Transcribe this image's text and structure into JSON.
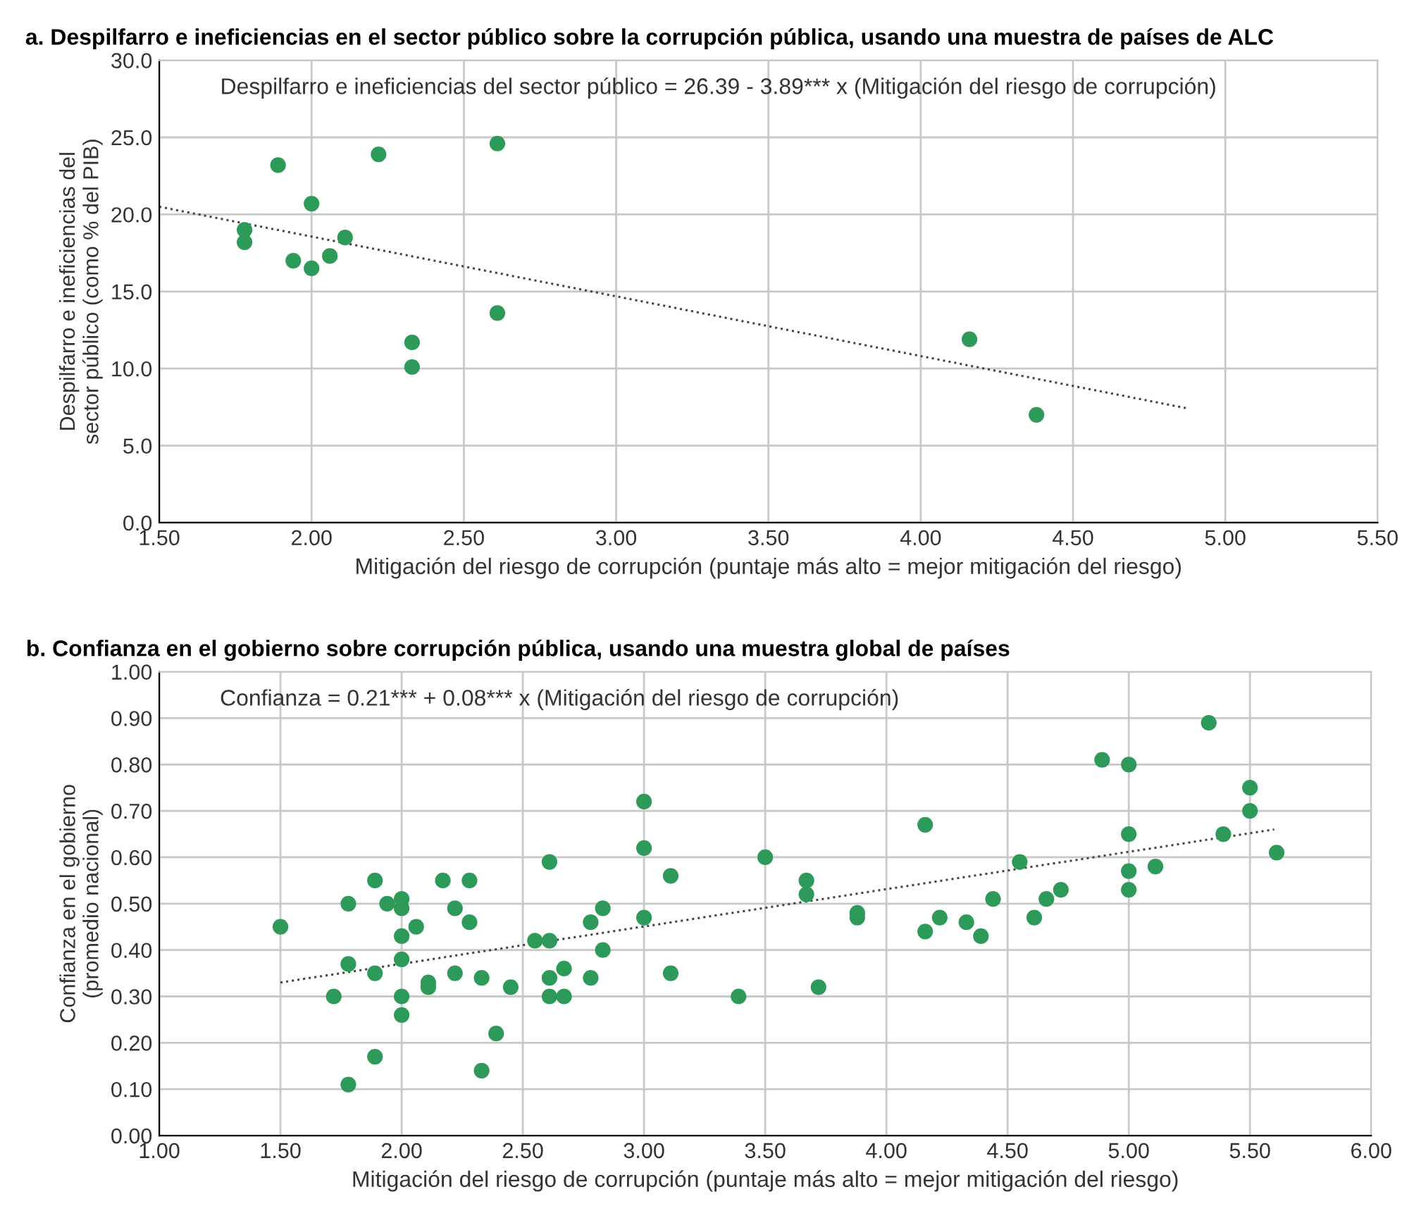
{
  "chart_data": [
    {
      "type": "scatter",
      "title": "a. Despilfarro e ineficiencias en el sector público sobre la corrupción pública, usando una muestra de países de ALC",
      "xlabel": "Mitigación del riesgo de corrupción (puntaje más alto = mejor mitigación del riesgo)",
      "ylabel": "Despilfarro e ineficiencias del\nsector público (como % del PIB)",
      "annotations": [
        "Despilfarro e ineficiencias del sector público = 26.39 - 3.89*** x (Mitigación del riesgo de corrupción)"
      ],
      "xlim": [
        1.5,
        5.5
      ],
      "xticks": [
        {
          "value": 1.5,
          "label": "1.50"
        },
        {
          "value": 2,
          "label": "2.00"
        },
        {
          "value": 2.5,
          "label": "2.50"
        },
        {
          "value": 3,
          "label": "3.00"
        },
        {
          "value": 3.5,
          "label": "3.50"
        },
        {
          "value": 4,
          "label": "4.00"
        },
        {
          "value": 4.5,
          "label": "4.50"
        },
        {
          "value": 5,
          "label": "5.00"
        },
        {
          "value": 5.5,
          "label": "5.50"
        }
      ],
      "ylim": [
        0,
        30
      ],
      "yticks": [
        {
          "value": 0,
          "label": "0.0"
        },
        {
          "value": 5,
          "label": "5.0"
        },
        {
          "value": 10,
          "label": "10.0"
        },
        {
          "value": 15,
          "label": "15.0"
        },
        {
          "value": 20,
          "label": "20.0"
        },
        {
          "value": 25,
          "label": "25.0"
        },
        {
          "value": 30,
          "label": "30.0"
        }
      ],
      "grid": true,
      "marker": "circle",
      "series": [
        {
          "color": "#2e9a5a",
          "x": [
            1.89,
            2.22,
            2.61,
            2.0,
            1.78,
            1.78,
            2.11,
            1.94,
            2.06,
            2.0,
            2.61,
            2.33,
            2.33,
            4.16,
            4.38
          ],
          "values": [
            23.2,
            23.9,
            24.6,
            20.7,
            19.0,
            18.2,
            18.5,
            17.0,
            17.3,
            16.5,
            13.6,
            11.7,
            10.1,
            11.9,
            7.0
          ]
        },
        {
          "type": "line",
          "color": "#444444",
          "line_style": "dotted",
          "marker": "none",
          "x": [
            1.5,
            4.88
          ],
          "values": [
            20.5,
            7.4
          ]
        }
      ]
    },
    {
      "type": "scatter",
      "title": "b. Confianza en el gobierno sobre corrupción pública, usando una muestra global de países",
      "xlabel": "Mitigación del riesgo de corrupción (puntaje más alto = mejor mitigación del riesgo)",
      "ylabel": "Confianza en el gobierno\n(promedio nacional)",
      "annotations": [
        "Confianza = 0.21*** + 0.08*** x (Mitigación del riesgo de corrupción)"
      ],
      "xlim": [
        1,
        6
      ],
      "xticks": [
        {
          "value": 1,
          "label": "1.00"
        },
        {
          "value": 1.5,
          "label": "1.50"
        },
        {
          "value": 2,
          "label": "2.00"
        },
        {
          "value": 2.5,
          "label": "2.50"
        },
        {
          "value": 3,
          "label": "3.00"
        },
        {
          "value": 3.5,
          "label": "3.50"
        },
        {
          "value": 4,
          "label": "4.00"
        },
        {
          "value": 4.5,
          "label": "4.50"
        },
        {
          "value": 5,
          "label": "5.00"
        },
        {
          "value": 5.5,
          "label": "5.50"
        },
        {
          "value": 6,
          "label": "6.00"
        }
      ],
      "ylim": [
        0,
        1
      ],
      "yticks": [
        {
          "value": 0,
          "label": "0.00"
        },
        {
          "value": 0.1,
          "label": "0.10"
        },
        {
          "value": 0.2,
          "label": "0.20"
        },
        {
          "value": 0.3,
          "label": "0.30"
        },
        {
          "value": 0.4,
          "label": "0.40"
        },
        {
          "value": 0.5,
          "label": "0.50"
        },
        {
          "value": 0.6,
          "label": "0.60"
        },
        {
          "value": 0.7,
          "label": "0.70"
        },
        {
          "value": 0.8,
          "label": "0.80"
        },
        {
          "value": 0.9,
          "label": "0.90"
        },
        {
          "value": 1,
          "label": "1.00"
        }
      ],
      "grid": true,
      "marker": "circle",
      "series": [
        {
          "color": "#2e9a5a",
          "x": [
            1.5,
            1.78,
            1.89,
            1.94,
            2.0,
            2.0,
            2.0,
            2.06,
            2.0,
            1.78,
            1.89,
            1.72,
            2.0,
            2.0,
            1.89,
            1.78,
            2.17,
            2.28,
            2.22,
            2.28,
            2.11,
            2.11,
            2.22,
            2.33,
            2.45,
            2.39,
            2.33,
            2.61,
            2.55,
            2.61,
            2.61,
            2.61,
            2.67,
            2.67,
            2.78,
            2.83,
            2.83,
            2.78,
            3.0,
            3.0,
            3.0,
            3.11,
            3.11,
            3.39,
            3.5,
            3.67,
            3.67,
            3.72,
            3.88,
            3.88,
            4.16,
            4.16,
            4.22,
            4.33,
            4.39,
            4.44,
            4.55,
            4.61,
            4.66,
            4.72,
            4.89,
            5.0,
            5.0,
            5.0,
            5.0,
            5.11,
            5.33,
            5.39,
            5.5,
            5.5,
            5.61
          ],
          "values": [
            0.45,
            0.5,
            0.55,
            0.5,
            0.51,
            0.49,
            0.43,
            0.45,
            0.38,
            0.37,
            0.35,
            0.3,
            0.3,
            0.26,
            0.17,
            0.11,
            0.55,
            0.55,
            0.49,
            0.46,
            0.33,
            0.32,
            0.35,
            0.34,
            0.32,
            0.22,
            0.14,
            0.59,
            0.42,
            0.42,
            0.34,
            0.3,
            0.36,
            0.3,
            0.46,
            0.49,
            0.4,
            0.34,
            0.72,
            0.62,
            0.47,
            0.56,
            0.35,
            0.3,
            0.6,
            0.55,
            0.52,
            0.32,
            0.48,
            0.47,
            0.67,
            0.44,
            0.47,
            0.46,
            0.43,
            0.51,
            0.59,
            0.47,
            0.51,
            0.53,
            0.81,
            0.8,
            0.65,
            0.57,
            0.53,
            0.58,
            0.89,
            0.65,
            0.75,
            0.7,
            0.61
          ]
        },
        {
          "type": "line",
          "color": "#444444",
          "line_style": "dotted",
          "marker": "none",
          "x": [
            1.5,
            5.6
          ],
          "values": [
            0.33,
            0.66
          ]
        }
      ]
    }
  ]
}
